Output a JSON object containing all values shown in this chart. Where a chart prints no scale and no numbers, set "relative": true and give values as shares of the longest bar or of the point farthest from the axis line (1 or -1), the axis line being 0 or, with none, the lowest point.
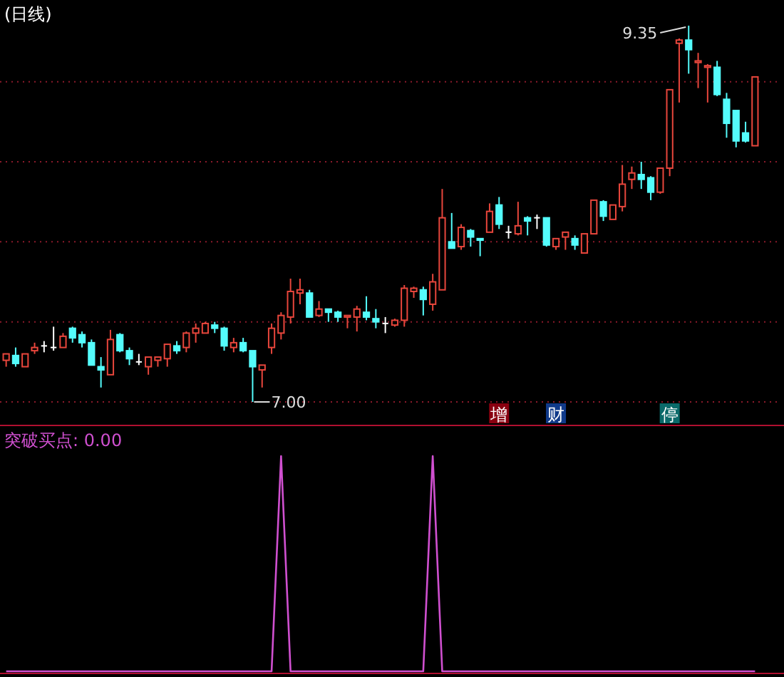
{
  "chart_data": [
    {
      "type": "candlestick",
      "title": "(日线)",
      "categories": [
        null,
        null,
        null,
        null,
        null,
        null,
        null,
        null,
        null,
        null,
        null,
        null,
        null,
        null,
        null,
        null,
        null,
        null,
        null,
        null,
        null,
        null,
        null,
        null,
        null,
        null,
        null,
        null,
        null,
        null,
        null,
        null,
        null,
        null,
        null,
        null,
        null,
        null,
        null,
        null,
        null,
        null,
        null,
        null,
        null,
        null,
        null,
        null,
        null,
        null,
        null,
        null,
        null,
        null,
        null,
        null,
        null,
        null,
        null,
        null,
        null,
        null,
        null,
        null,
        null,
        null,
        null,
        null,
        null,
        null,
        null,
        null,
        null,
        null,
        null,
        null,
        null,
        null,
        null,
        null
      ],
      "ohlc": [
        [
          7.26,
          7.3,
          7.22,
          7.3
        ],
        [
          7.29,
          7.34,
          7.22,
          7.24
        ],
        [
          7.22,
          7.3,
          7.22,
          7.3
        ],
        [
          7.32,
          7.37,
          7.3,
          7.34
        ],
        [
          7.35,
          7.38,
          7.31,
          7.35
        ],
        [
          7.34,
          7.47,
          7.32,
          7.34
        ],
        [
          7.34,
          7.43,
          7.34,
          7.41
        ],
        [
          7.46,
          7.47,
          7.37,
          7.4
        ],
        [
          7.42,
          7.44,
          7.34,
          7.37
        ],
        [
          7.37,
          7.39,
          7.23,
          7.23
        ],
        [
          7.22,
          7.28,
          7.09,
          7.2
        ],
        [
          7.17,
          7.45,
          7.17,
          7.39
        ],
        [
          7.42,
          7.43,
          7.31,
          7.32
        ],
        [
          7.32,
          7.34,
          7.23,
          7.27
        ],
        [
          7.25,
          7.3,
          7.23,
          7.25
        ],
        [
          7.22,
          7.28,
          7.17,
          7.28
        ],
        [
          7.26,
          7.28,
          7.22,
          7.28
        ],
        [
          7.27,
          7.36,
          7.22,
          7.36
        ],
        [
          7.35,
          7.38,
          7.3,
          7.32
        ],
        [
          7.34,
          7.44,
          7.31,
          7.43
        ],
        [
          7.43,
          7.49,
          7.37,
          7.46
        ],
        [
          7.43,
          7.5,
          7.43,
          7.49
        ],
        [
          7.48,
          7.5,
          7.43,
          7.46
        ],
        [
          7.46,
          7.47,
          7.32,
          7.35
        ],
        [
          7.34,
          7.4,
          7.31,
          7.37
        ],
        [
          7.37,
          7.4,
          7.31,
          7.32
        ],
        [
          7.32,
          7.32,
          7.0,
          7.22
        ],
        [
          7.2,
          7.23,
          7.09,
          7.23
        ],
        [
          7.34,
          7.49,
          7.3,
          7.46
        ],
        [
          7.43,
          7.56,
          7.39,
          7.54
        ],
        [
          7.53,
          7.77,
          7.49,
          7.69
        ],
        [
          7.68,
          7.77,
          7.61,
          7.7
        ],
        [
          7.68,
          7.7,
          7.53,
          7.53
        ],
        [
          7.54,
          7.63,
          7.53,
          7.58
        ],
        [
          7.58,
          7.58,
          7.5,
          7.56
        ],
        [
          7.56,
          7.57,
          7.5,
          7.53
        ],
        [
          7.53,
          7.54,
          7.46,
          7.54
        ],
        [
          7.53,
          7.6,
          7.44,
          7.58
        ],
        [
          7.56,
          7.66,
          7.51,
          7.53
        ],
        [
          7.52,
          7.58,
          7.46,
          7.5
        ],
        [
          7.49,
          7.53,
          7.43,
          7.49
        ],
        [
          7.48,
          7.52,
          7.47,
          7.51
        ],
        [
          7.51,
          7.73,
          7.47,
          7.71
        ],
        [
          7.69,
          7.72,
          7.65,
          7.71
        ],
        [
          7.7,
          7.72,
          7.54,
          7.64
        ],
        [
          7.61,
          7.8,
          7.57,
          7.75
        ],
        [
          7.7,
          8.33,
          7.7,
          8.15
        ],
        [
          8.0,
          8.18,
          7.96,
          7.96
        ],
        [
          7.97,
          8.11,
          7.95,
          8.09
        ],
        [
          8.07,
          8.08,
          7.97,
          8.03
        ],
        [
          8.02,
          8.02,
          7.91,
          8.01
        ],
        [
          8.06,
          8.24,
          8.06,
          8.19
        ],
        [
          8.23,
          8.28,
          8.08,
          8.11
        ],
        [
          8.06,
          8.1,
          8.02,
          8.06
        ],
        [
          8.05,
          8.25,
          8.04,
          8.1
        ],
        [
          8.15,
          8.16,
          8.04,
          8.13
        ],
        [
          8.15,
          8.17,
          8.08,
          8.15
        ],
        [
          8.15,
          8.15,
          7.97,
          7.98
        ],
        [
          7.97,
          8.02,
          7.95,
          8.02
        ],
        [
          8.03,
          8.06,
          7.95,
          8.06
        ],
        [
          8.02,
          8.04,
          7.95,
          7.98
        ],
        [
          7.93,
          8.05,
          7.93,
          8.05
        ],
        [
          8.05,
          8.26,
          8.05,
          8.26
        ],
        [
          8.25,
          8.26,
          8.13,
          8.16
        ],
        [
          8.14,
          8.23,
          8.14,
          8.23
        ],
        [
          8.22,
          8.48,
          8.19,
          8.36
        ],
        [
          8.39,
          8.47,
          8.33,
          8.43
        ],
        [
          8.42,
          8.5,
          8.33,
          8.39
        ],
        [
          8.4,
          8.41,
          8.26,
          8.31
        ],
        [
          8.31,
          8.46,
          8.3,
          8.46
        ],
        [
          8.46,
          8.95,
          8.41,
          8.95
        ],
        [
          9.24,
          9.27,
          8.87,
          9.26
        ],
        [
          9.26,
          9.35,
          9.05,
          9.2
        ],
        [
          9.12,
          9.18,
          8.96,
          9.13
        ],
        [
          9.09,
          9.11,
          8.87,
          9.1
        ],
        [
          9.09,
          9.13,
          8.91,
          8.92
        ],
        [
          8.89,
          8.93,
          8.65,
          8.74
        ],
        [
          8.82,
          8.82,
          8.59,
          8.63
        ],
        [
          8.68,
          8.75,
          8.62,
          8.63
        ],
        [
          8.6,
          9.03,
          8.6,
          9.03
        ]
      ],
      "colors": [
        "#e8463c",
        "#54fcfc",
        "#e8463c",
        "#e8463c",
        "#ffffff",
        "#ffffff",
        "#e8463c",
        "#54fcfc",
        "#54fcfc",
        "#54fcfc",
        "#54fcfc",
        "#e8463c",
        "#54fcfc",
        "#54fcfc",
        "#ffffff",
        "#e8463c",
        "#e8463c",
        "#e8463c",
        "#54fcfc",
        "#e8463c",
        "#e8463c",
        "#e8463c",
        "#54fcfc",
        "#54fcfc",
        "#e8463c",
        "#54fcfc",
        "#54fcfc",
        "#e8463c",
        "#e8463c",
        "#e8463c",
        "#e8463c",
        "#e8463c",
        "#54fcfc",
        "#e8463c",
        "#54fcfc",
        "#54fcfc",
        "#e8463c",
        "#e8463c",
        "#54fcfc",
        "#54fcfc",
        "#ffffff",
        "#e8463c",
        "#e8463c",
        "#e8463c",
        "#54fcfc",
        "#e8463c",
        "#e8463c",
        "#54fcfc",
        "#e8463c",
        "#54fcfc",
        "#54fcfc",
        "#e8463c",
        "#54fcfc",
        "#ffffff",
        "#e8463c",
        "#54fcfc",
        "#ffffff",
        "#54fcfc",
        "#e8463c",
        "#e8463c",
        "#54fcfc",
        "#e8463c",
        "#e8463c",
        "#54fcfc",
        "#e8463c",
        "#e8463c",
        "#e8463c",
        "#54fcfc",
        "#54fcfc",
        "#e8463c",
        "#e8463c",
        "#e8463c",
        "#54fcfc",
        "#e8463c",
        "#e8463c",
        "#54fcfc",
        "#54fcfc",
        "#54fcfc",
        "#54fcfc",
        "#e8463c"
      ],
      "yticks": [
        {
          "value": 7,
          "label": null
        },
        {
          "value": 7.5,
          "label": null
        },
        {
          "value": 8,
          "label": null
        },
        {
          "value": 8.5,
          "label": null
        },
        {
          "value": 9,
          "label": null
        }
      ],
      "grid": "y",
      "annotations": [
        "9.35",
        "7.00",
        "增",
        "财",
        "停"
      ]
    },
    {
      "type": "line",
      "title": "突破买点: 0.00",
      "categories": [
        null,
        null,
        null,
        null,
        null,
        null,
        null,
        null,
        null,
        null,
        null,
        null,
        null,
        null,
        null,
        null,
        null,
        null,
        null,
        null,
        null,
        null,
        null,
        null,
        null,
        null,
        null,
        null,
        null,
        null,
        null,
        null,
        null,
        null,
        null,
        null,
        null,
        null,
        null,
        null,
        null,
        null,
        null,
        null,
        null,
        null,
        null,
        null,
        null,
        null,
        null,
        null,
        null,
        null,
        null,
        null,
        null,
        null,
        null,
        null,
        null,
        null,
        null,
        null,
        null,
        null,
        null,
        null,
        null,
        null,
        null,
        null,
        null,
        null,
        null,
        null,
        null,
        null,
        null,
        null
      ],
      "series": [
        {
          "color": "#d050d0",
          "values": [
            0,
            0,
            0,
            0,
            0,
            0,
            0,
            0,
            0,
            0,
            0,
            0,
            0,
            0,
            0,
            0,
            0,
            0,
            0,
            0,
            0,
            0,
            0,
            0,
            0,
            0,
            0,
            0,
            0,
            1,
            0,
            0,
            0,
            0,
            0,
            0,
            0,
            0,
            0,
            0,
            0,
            0,
            0,
            0,
            0,
            1,
            0,
            0,
            0,
            0,
            0,
            0,
            0,
            0,
            0,
            0,
            0,
            0,
            0,
            0,
            0,
            0,
            0,
            0,
            0,
            0,
            0,
            0,
            0,
            0,
            0,
            0,
            0,
            0,
            0,
            0,
            0,
            0,
            0,
            0
          ]
        }
      ],
      "relative": true
    }
  ]
}
